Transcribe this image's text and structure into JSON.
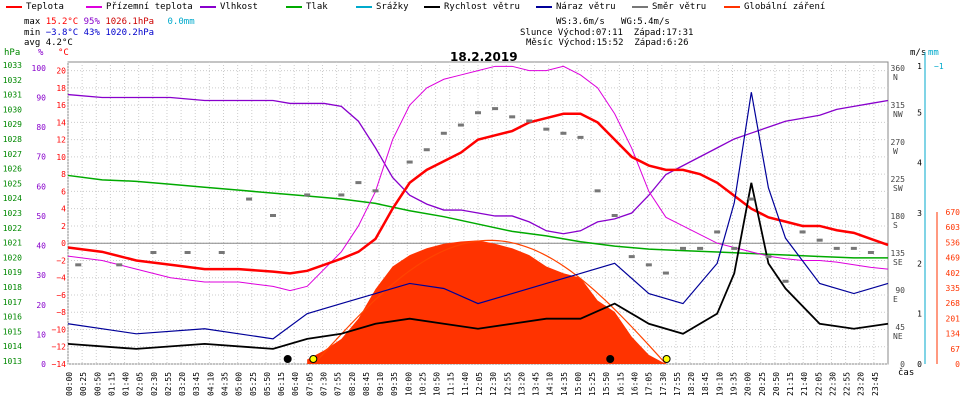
{
  "legend": [
    {
      "label": "Teplota",
      "color": "#ff0000"
    },
    {
      "label": "Přízemní teplota",
      "color": "#dd00dd"
    },
    {
      "label": "Vlhkost",
      "color": "#8800cc"
    },
    {
      "label": "Tlak",
      "color": "#00aa00"
    },
    {
      "label": "Srážky",
      "color": "#00aacc"
    },
    {
      "label": "Rychlost větru",
      "color": "#000000"
    },
    {
      "label": "Náraz větru",
      "color": "#000099"
    },
    {
      "label": "Směr větru",
      "color": "#777777"
    },
    {
      "label": "Globální záření",
      "color": "#ff3300"
    }
  ],
  "stats": {
    "max_label": "max",
    "max_temp": "15.2°C",
    "max_hum": "95%",
    "max_press": "1026.1hPa",
    "max_rain": "0.0mm",
    "min_label": "min",
    "min_temp": "−3.8°C",
    "min_hum": "43%",
    "min_press": "1020.2hPa",
    "avg_label": "avg",
    "avg_temp": "4.2°C"
  },
  "sun": {
    "ws": "WS:3.6m/s",
    "wg": "WG:5.4m/s",
    "slunce": "Slunce Východ:07:11",
    "slunce_zapad": "Západ:17:31",
    "mesic": "Měsíc Východ:15:52",
    "mesic_zapad": "Západ:6:26"
  },
  "axis_heads": {
    "hpa": "hPa",
    "pct": "%",
    "degc": "°C",
    "ms": "m/s",
    "mm": "mm"
  },
  "x_label": "čas",
  "chart_data": {
    "type": "line",
    "title": "18.2.2019",
    "x_ticks": [
      "00:00",
      "00:25",
      "00:50",
      "01:15",
      "01:40",
      "02:05",
      "02:30",
      "02:55",
      "03:20",
      "03:45",
      "04:10",
      "04:35",
      "05:00",
      "05:25",
      "05:50",
      "06:15",
      "06:40",
      "07:05",
      "07:30",
      "07:55",
      "08:20",
      "08:45",
      "09:10",
      "09:35",
      "10:00",
      "10:25",
      "10:50",
      "11:15",
      "11:40",
      "12:05",
      "12:30",
      "12:55",
      "13:20",
      "13:45",
      "14:10",
      "14:35",
      "15:00",
      "15:25",
      "15:50",
      "16:15",
      "16:40",
      "17:05",
      "17:30",
      "17:55",
      "18:20",
      "18:45",
      "19:10",
      "19:35",
      "20:00",
      "20:25",
      "20:50",
      "21:15",
      "21:40",
      "22:05",
      "22:30",
      "22:55",
      "23:20",
      "23:45"
    ],
    "y_axes": {
      "hpa": [
        "1033",
        "1032",
        "1031",
        "1030",
        "1029",
        "1028",
        "1027",
        "1026",
        "1025",
        "1024",
        "1023",
        "1022",
        "1021",
        "1020",
        "1019",
        "1018",
        "1017",
        "1016",
        "1015",
        "1014",
        "1013"
      ],
      "pct": [
        "100",
        "90",
        "80",
        "70",
        "60",
        "50",
        "40",
        "30",
        "20",
        "10",
        "0"
      ],
      "degc": [
        "20",
        "18",
        "16",
        "14",
        "12",
        "10",
        "8",
        "6",
        "4",
        "2",
        "0",
        "−2",
        "−4",
        "−6",
        "−8",
        "−10",
        "−12",
        "−14"
      ],
      "dir": [
        "360",
        "315",
        "270",
        "225",
        "180",
        "135",
        "90",
        "45",
        "0"
      ],
      "dir_names": [
        "N",
        "NW",
        "W",
        "SW",
        "S",
        "SE",
        "E",
        "NE"
      ],
      "ms": [
        "1",
        "5",
        "4",
        "3",
        "2",
        "1",
        "0"
      ],
      "mm": [
        "−1"
      ],
      "solar": [
        "670",
        "603",
        "536",
        "469",
        "402",
        "335",
        "268",
        "201",
        "134",
        "67",
        "0"
      ]
    },
    "temp_range": [
      -14,
      21
    ],
    "series": [
      {
        "name": "Teplota",
        "unit": "°C",
        "x": [
          0,
          1,
          2,
          3,
          4,
          5,
          6,
          6.5,
          7,
          7.5,
          8,
          8.5,
          9,
          9.5,
          10,
          10.5,
          11,
          11.5,
          12,
          12.5,
          13,
          13.5,
          14,
          14.5,
          15,
          15.5,
          16,
          16.5,
          17,
          17.5,
          18,
          18.5,
          19,
          19.5,
          20,
          20.5,
          21,
          21.5,
          22,
          22.5,
          23,
          23.5,
          24
        ],
        "values": [
          -0.5,
          -1,
          -2,
          -2.5,
          -3,
          -3,
          -3.3,
          -3.5,
          -3.2,
          -2.5,
          -1.8,
          -1,
          0.5,
          4,
          7,
          8.5,
          9.5,
          10.5,
          12,
          12.5,
          13,
          14,
          14.5,
          15,
          15,
          14,
          12,
          10,
          9,
          8.5,
          8.5,
          8,
          7,
          5.5,
          4,
          3,
          2.5,
          2,
          2,
          1.5,
          1.2,
          0.5,
          -0.2
        ]
      },
      {
        "name": "Přízemní teplota",
        "unit": "°C",
        "x": [
          0,
          1,
          2,
          3,
          4,
          5,
          6,
          6.5,
          7,
          7.5,
          8,
          8.5,
          9,
          9.5,
          10,
          10.5,
          11,
          11.5,
          12,
          12.5,
          13,
          13.5,
          14,
          14.5,
          15,
          15.5,
          16,
          16.5,
          17,
          17.5,
          18,
          18.5,
          19,
          19.5,
          20,
          20.5,
          21,
          21.5,
          22,
          22.5,
          23,
          23.5,
          24
        ],
        "values": [
          -1.5,
          -2,
          -3,
          -4,
          -4.5,
          -4.5,
          -5,
          -5.5,
          -5,
          -3,
          -1,
          2,
          6,
          12,
          16,
          18,
          19,
          19.5,
          20,
          20.5,
          20.5,
          20,
          20,
          20.5,
          19.5,
          18,
          15,
          11,
          6,
          3,
          2,
          1,
          0,
          -0.5,
          -1,
          -1.5,
          -1.8,
          -2,
          -2,
          -2.2,
          -2.5,
          -2.8,
          -3
        ]
      },
      {
        "name": "Vlhkost",
        "unit": "%",
        "x": [
          0,
          1,
          2,
          3,
          4,
          5,
          6,
          6.5,
          7,
          7.5,
          8,
          8.5,
          9,
          9.5,
          10,
          10.5,
          11,
          11.5,
          12,
          12.5,
          13,
          13.5,
          14,
          14.5,
          15,
          15.5,
          16,
          16.5,
          17,
          17.5,
          18,
          18.5,
          19,
          19.5,
          20,
          20.5,
          21,
          21.5,
          22,
          22.5,
          23,
          23.5,
          24
        ],
        "values": [
          91,
          90,
          90,
          90,
          89,
          89,
          89,
          88,
          88,
          88,
          87,
          82,
          73,
          63,
          57,
          54,
          52,
          52,
          51,
          50,
          50,
          48,
          45,
          44,
          45,
          48,
          49,
          51,
          57,
          64,
          67,
          70,
          73,
          76,
          78,
          80,
          82,
          83,
          84,
          86,
          87,
          88,
          89
        ]
      },
      {
        "name": "Tlak",
        "unit": "hPa",
        "x": [
          0,
          1,
          2,
          3,
          4,
          5,
          6,
          7,
          8,
          9,
          10,
          11,
          12,
          13,
          14,
          15,
          16,
          17,
          18,
          19,
          20,
          21,
          22,
          23,
          24
        ],
        "values": [
          1025.8,
          1025.5,
          1025.4,
          1025.2,
          1025,
          1024.8,
          1024.6,
          1024.4,
          1024.2,
          1023.9,
          1023.4,
          1023,
          1022.5,
          1022,
          1021.7,
          1021.3,
          1021,
          1020.8,
          1020.7,
          1020.6,
          1020.5,
          1020.4,
          1020.3,
          1020.2,
          1020.2
        ]
      },
      {
        "name": "Srážky",
        "unit": "mm",
        "x": [
          0,
          24
        ],
        "values": [
          0,
          0
        ]
      },
      {
        "name": "Rychlost větru",
        "unit": "m/s",
        "x": [
          0,
          2,
          4,
          6,
          7,
          8,
          9,
          10,
          11,
          12,
          13,
          14,
          15,
          16,
          17,
          18,
          19,
          19.5,
          20,
          20.5,
          21,
          22,
          23,
          24
        ],
        "values": [
          0.4,
          0.3,
          0.4,
          0.3,
          0.5,
          0.6,
          0.8,
          0.9,
          0.8,
          0.7,
          0.8,
          0.9,
          0.9,
          1.2,
          0.8,
          0.6,
          1,
          1.8,
          3.6,
          2,
          1.5,
          0.8,
          0.7,
          0.8
        ]
      },
      {
        "name": "Náraz větru",
        "unit": "m/s",
        "x": [
          0,
          2,
          4,
          6,
          7,
          8,
          9,
          10,
          11,
          12,
          13,
          14,
          15,
          16,
          17,
          18,
          19,
          19.5,
          20,
          20.5,
          21,
          22,
          23,
          24
        ],
        "values": [
          0.8,
          0.6,
          0.7,
          0.5,
          1,
          1.2,
          1.4,
          1.6,
          1.5,
          1.2,
          1.4,
          1.6,
          1.8,
          2,
          1.4,
          1.2,
          2,
          3.2,
          5.4,
          3.5,
          2.5,
          1.6,
          1.4,
          1.6
        ]
      },
      {
        "name": "Globální záření",
        "unit": "W/m²",
        "x": [
          7,
          7.5,
          8,
          8.5,
          9,
          9.5,
          10,
          10.5,
          11,
          11.5,
          12,
          12.5,
          13,
          13.5,
          14,
          14.5,
          15,
          15.5,
          16,
          16.5,
          17,
          17.5
        ],
        "values": [
          20,
          60,
          110,
          200,
          330,
          430,
          480,
          510,
          530,
          540,
          545,
          530,
          510,
          480,
          430,
          400,
          380,
          280,
          230,
          120,
          40,
          0
        ]
      },
      {
        "name": "Směr větru",
        "unit": "°",
        "x": [
          0.3,
          1.5,
          2.5,
          3.5,
          4.5,
          5.3,
          6,
          7,
          8,
          8.5,
          9,
          10,
          10.5,
          11,
          11.5,
          12,
          12.5,
          13,
          13.5,
          14,
          14.5,
          15,
          15.5,
          16,
          16.5,
          17,
          17.5,
          18,
          18.5,
          19,
          19.5,
          20,
          20.5,
          21,
          21.5,
          22,
          22.5,
          23,
          23.5
        ],
        "values": [
          120,
          120,
          135,
          135,
          135,
          200,
          180,
          205,
          205,
          220,
          210,
          245,
          260,
          280,
          290,
          305,
          310,
          300,
          295,
          285,
          280,
          275,
          210,
          180,
          130,
          120,
          110,
          140,
          140,
          160,
          140,
          200,
          130,
          100,
          160,
          150,
          140,
          140,
          135
        ]
      }
    ]
  }
}
